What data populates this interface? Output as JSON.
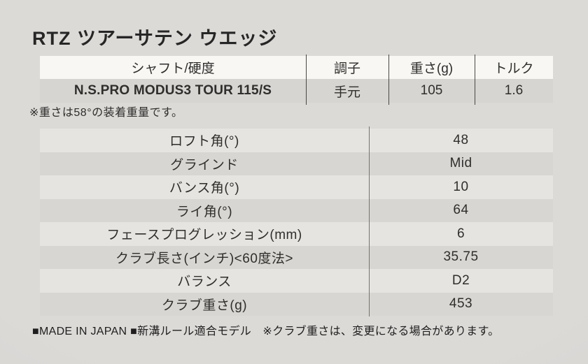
{
  "page": {
    "title": "RTZ ツアーサテン ウエッジ",
    "weight_note": "※重さは58°の装着重量です。",
    "footer": "■MADE IN JAPAN ■新溝ルール適合モデル　※クラブ重さは、変更になる場合があります。"
  },
  "shaft_table": {
    "headers": [
      "シャフト/硬度",
      "調子",
      "重さ(g)",
      "トルク"
    ],
    "rows": [
      [
        "N.S.PRO MODUS3 TOUR 115/S",
        "手元",
        "105",
        "1.6"
      ]
    ]
  },
  "spec_table": {
    "rows": [
      {
        "label": "ロフト角(°)",
        "value": "48"
      },
      {
        "label": "グラインド",
        "value": "Mid"
      },
      {
        "label": "バンス角(°)",
        "value": "10"
      },
      {
        "label": "ライ角(°)",
        "value": "64"
      },
      {
        "label": "フェースプログレッション(mm)",
        "value": "6"
      },
      {
        "label": "クラブ長さ(インチ)<60度法>",
        "value": "35.75"
      },
      {
        "label": "バランス",
        "value": "D2"
      },
      {
        "label": "クラブ重さ(g)",
        "value": "453"
      }
    ]
  },
  "colors": {
    "background": "#dcdad7",
    "background_edge": "#d2d0cd",
    "header_row_bg": "#f8f7f4",
    "shaft_row_bg": "#d7d5d2",
    "spec_row_light": "#e6e4e1",
    "spec_row_dark": "#d8d6d2",
    "divider": "#76746f",
    "divider_dark": "#4a4845",
    "text": "#2f2e2c",
    "title_text": "#262626",
    "footer_text": "#1f1f1f"
  }
}
